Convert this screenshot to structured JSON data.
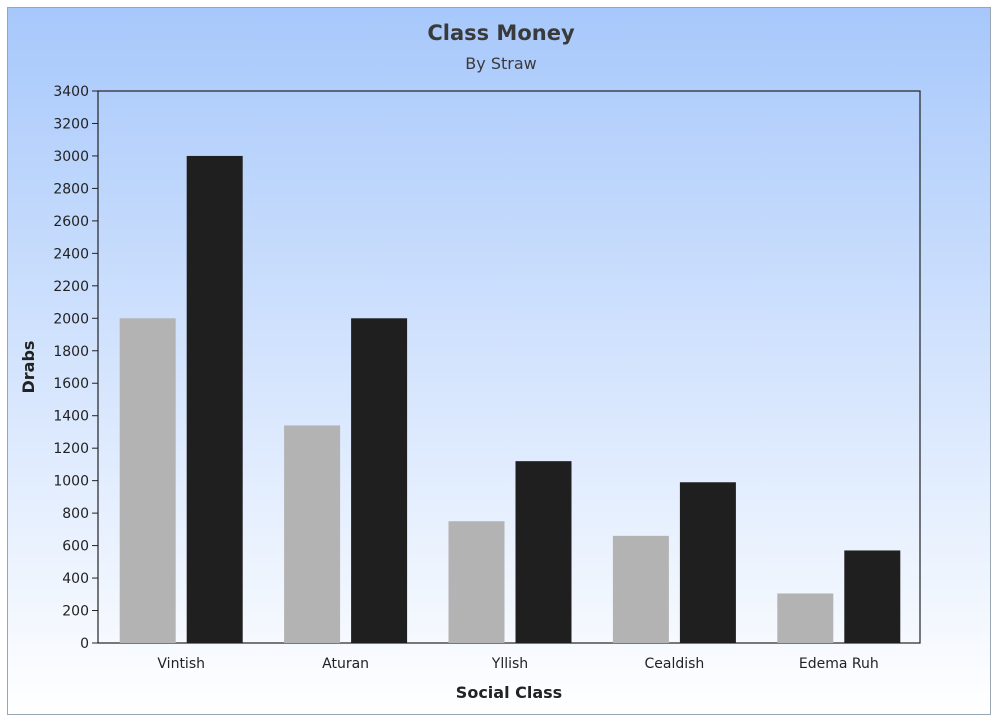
{
  "chart_data": {
    "type": "bar",
    "title": "Class Money",
    "subtitle": "By Straw",
    "xlabel": "Social Class",
    "ylabel": "Drabs",
    "categories": [
      "Vintish",
      "Aturan",
      "Yllish",
      "Cealdish",
      "Edema Ruh"
    ],
    "series": [
      {
        "color": "#b3b3b3",
        "values": [
          2000,
          1340,
          750,
          660,
          305
        ]
      },
      {
        "color": "#1f1f1f",
        "values": [
          3000,
          2000,
          1120,
          990,
          570
        ]
      }
    ],
    "ylim": [
      0,
      3400
    ],
    "ytick_step": 200,
    "grid": false,
    "legend": "none"
  }
}
